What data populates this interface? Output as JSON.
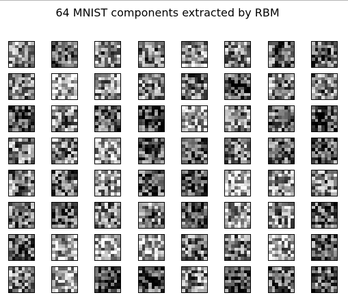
{
  "title": "64 MNIST components extracted by RBM",
  "grid": {
    "rows": 8,
    "cols": 8
  },
  "colormap": "gray_r"
}
